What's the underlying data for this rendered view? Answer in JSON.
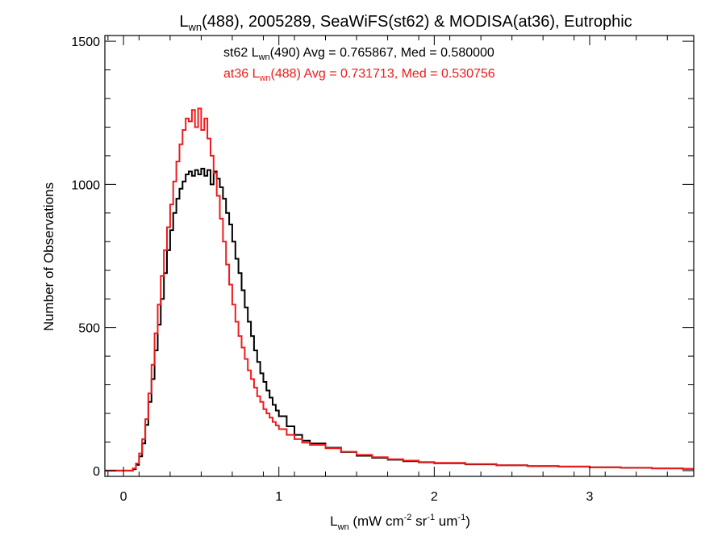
{
  "chart_data": {
    "type": "line",
    "title": {
      "pre": "L",
      "sub": "wn",
      "post": "(488), 2005289, SeaWiFS(st62) & MODISA(at36), Eutrophic"
    },
    "xlabel": {
      "pre": "L",
      "sub": "wn",
      "mid1": " (mW cm",
      "sup1": "-2",
      "mid2": " sr",
      "sup2": "-1",
      "mid3": " um",
      "sup3": "-1",
      "post": ")"
    },
    "ylabel": "Number of Observations",
    "xlim": [
      -0.12,
      3.67
    ],
    "ylim": [
      -20,
      1520
    ],
    "x_ticks": [
      {
        "value": 0,
        "label": "0"
      },
      {
        "value": 1,
        "label": "1"
      },
      {
        "value": 2,
        "label": "2"
      },
      {
        "value": 3,
        "label": "3"
      }
    ],
    "y_ticks": [
      {
        "value": 0,
        "label": "0"
      },
      {
        "value": 500,
        "label": "500"
      },
      {
        "value": 1000,
        "label": "1000"
      },
      {
        "value": 1500,
        "label": "1500"
      }
    ],
    "grid": false,
    "annotations": [
      {
        "color": "#000000",
        "pre": "st62 L",
        "sub": "wn",
        "post": "(490) Avg = 0.765867, Med = 0.580000"
      },
      {
        "color": "#ee1c1c",
        "pre": "at36 L",
        "sub": "wn",
        "post": "(488) Avg = 0.731713, Med = 0.530756"
      }
    ],
    "series": [
      {
        "color": "#000000",
        "points": [
          [
            -0.12,
            0
          ],
          [
            0.03,
            0
          ],
          [
            0.06,
            5
          ],
          [
            0.08,
            20
          ],
          [
            0.1,
            50
          ],
          [
            0.12,
            95
          ],
          [
            0.14,
            160
          ],
          [
            0.16,
            240
          ],
          [
            0.18,
            320
          ],
          [
            0.2,
            420
          ],
          [
            0.22,
            510
          ],
          [
            0.24,
            600
          ],
          [
            0.26,
            690
          ],
          [
            0.28,
            770
          ],
          [
            0.3,
            840
          ],
          [
            0.32,
            900
          ],
          [
            0.34,
            950
          ],
          [
            0.36,
            985
          ],
          [
            0.38,
            1010
          ],
          [
            0.4,
            1035
          ],
          [
            0.42,
            1045
          ],
          [
            0.44,
            1030
          ],
          [
            0.46,
            1050
          ],
          [
            0.48,
            1035
          ],
          [
            0.5,
            1055
          ],
          [
            0.52,
            1030
          ],
          [
            0.54,
            1050
          ],
          [
            0.56,
            1000
          ],
          [
            0.58,
            1045
          ],
          [
            0.6,
            1020
          ],
          [
            0.62,
            990
          ],
          [
            0.64,
            950
          ],
          [
            0.66,
            900
          ],
          [
            0.68,
            860
          ],
          [
            0.7,
            800
          ],
          [
            0.72,
            740
          ],
          [
            0.74,
            690
          ],
          [
            0.76,
            630
          ],
          [
            0.78,
            570
          ],
          [
            0.8,
            520
          ],
          [
            0.82,
            470
          ],
          [
            0.84,
            420
          ],
          [
            0.86,
            380
          ],
          [
            0.88,
            340
          ],
          [
            0.9,
            310
          ],
          [
            0.92,
            280
          ],
          [
            0.94,
            255
          ],
          [
            0.96,
            230
          ],
          [
            0.98,
            210
          ],
          [
            1.0,
            190
          ],
          [
            1.05,
            155
          ],
          [
            1.1,
            125
          ],
          [
            1.15,
            105
          ],
          [
            1.2,
            95
          ],
          [
            1.3,
            80
          ],
          [
            1.4,
            65
          ],
          [
            1.5,
            52
          ],
          [
            1.6,
            45
          ],
          [
            1.7,
            38
          ],
          [
            1.8,
            33
          ],
          [
            1.9,
            29
          ],
          [
            2.0,
            26
          ],
          [
            2.2,
            22
          ],
          [
            2.4,
            19
          ],
          [
            2.6,
            16
          ],
          [
            2.8,
            14
          ],
          [
            3.0,
            12
          ],
          [
            3.2,
            10
          ],
          [
            3.4,
            8
          ],
          [
            3.6,
            6
          ],
          [
            3.67,
            6
          ]
        ]
      },
      {
        "color": "#ee1c1c",
        "points": [
          [
            -0.12,
            0
          ],
          [
            0.03,
            0
          ],
          [
            0.06,
            8
          ],
          [
            0.08,
            25
          ],
          [
            0.1,
            60
          ],
          [
            0.12,
            110
          ],
          [
            0.14,
            180
          ],
          [
            0.16,
            270
          ],
          [
            0.18,
            370
          ],
          [
            0.2,
            480
          ],
          [
            0.22,
            580
          ],
          [
            0.24,
            680
          ],
          [
            0.26,
            770
          ],
          [
            0.28,
            850
          ],
          [
            0.3,
            930
          ],
          [
            0.32,
            1010
          ],
          [
            0.34,
            1080
          ],
          [
            0.36,
            1140
          ],
          [
            0.38,
            1190
          ],
          [
            0.4,
            1230
          ],
          [
            0.42,
            1220
          ],
          [
            0.44,
            1260
          ],
          [
            0.46,
            1200
          ],
          [
            0.48,
            1265
          ],
          [
            0.5,
            1190
          ],
          [
            0.52,
            1230
          ],
          [
            0.54,
            1160
          ],
          [
            0.56,
            1100
          ],
          [
            0.58,
            1040
          ],
          [
            0.6,
            960
          ],
          [
            0.62,
            880
          ],
          [
            0.64,
            800
          ],
          [
            0.66,
            720
          ],
          [
            0.68,
            650
          ],
          [
            0.7,
            580
          ],
          [
            0.72,
            520
          ],
          [
            0.74,
            470
          ],
          [
            0.76,
            430
          ],
          [
            0.78,
            390
          ],
          [
            0.8,
            350
          ],
          [
            0.82,
            320
          ],
          [
            0.84,
            290
          ],
          [
            0.86,
            260
          ],
          [
            0.88,
            240
          ],
          [
            0.9,
            215
          ],
          [
            0.92,
            200
          ],
          [
            0.94,
            185
          ],
          [
            0.96,
            170
          ],
          [
            0.98,
            158
          ],
          [
            1.0,
            145
          ],
          [
            1.05,
            125
          ],
          [
            1.1,
            110
          ],
          [
            1.15,
            98
          ],
          [
            1.2,
            90
          ],
          [
            1.3,
            78
          ],
          [
            1.4,
            66
          ],
          [
            1.5,
            55
          ],
          [
            1.6,
            47
          ],
          [
            1.7,
            40
          ],
          [
            1.8,
            35
          ],
          [
            1.9,
            30
          ],
          [
            2.0,
            27
          ],
          [
            2.2,
            23
          ],
          [
            2.4,
            19
          ],
          [
            2.6,
            16
          ],
          [
            2.8,
            14
          ],
          [
            3.0,
            12
          ],
          [
            3.2,
            10
          ],
          [
            3.4,
            8
          ],
          [
            3.6,
            6
          ],
          [
            3.67,
            6
          ]
        ]
      }
    ]
  }
}
